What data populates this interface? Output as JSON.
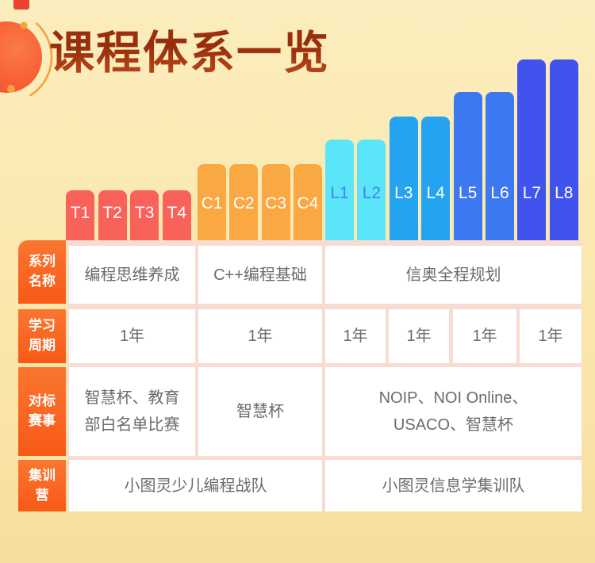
{
  "page": {
    "bg_top": "#FBEDBE",
    "bg_bottom": "#F8DE9D"
  },
  "header": {
    "title": "课程体系一览",
    "title_color_top": "#A1300F",
    "title_color_bottom": "#C04A1B",
    "tab_color": "#E8432D",
    "ornament_ball_color_inner": "#FB7A47",
    "ornament_ball_color_outer": "#F7502C",
    "ornament_ring_color": "#F5A33F"
  },
  "chart": {
    "type": "stepped-level-bars",
    "groups": [
      {
        "id": "T",
        "name": "编程思维养成",
        "levels": [
          "T1",
          "T2",
          "T3",
          "T4"
        ],
        "color": "#F9625A",
        "label_color": "#FFFFFF"
      },
      {
        "id": "C",
        "name": "C++编程基础",
        "levels": [
          "C1",
          "C2",
          "C3",
          "C4"
        ],
        "color": "#F9A844",
        "label_color": "#FFFFFF"
      },
      {
        "id": "L",
        "name": "信奥全程规划",
        "levels": [
          "L1",
          "L2",
          "L3",
          "L4",
          "L5",
          "L6",
          "L7",
          "L8"
        ],
        "pair_colors": [
          "#5BE5F9",
          "#24A3F1",
          "#3C78F0",
          "#4053EC"
        ],
        "pair_label_colors": [
          "#3F86E8",
          "#FFFFFF",
          "#FFFFFF",
          "#FFFFFF"
        ]
      }
    ]
  },
  "table": {
    "panel_color": "#F8DCD2",
    "header_gradient_top": "#FA7630",
    "header_gradient_bottom": "#F85917",
    "cell_text_color": "#6E6A68",
    "rows": [
      {
        "header": "系列\n名称",
        "cells": [
          {
            "span": "T",
            "text": "编程思维养成"
          },
          {
            "span": "C",
            "text": "C++编程基础"
          },
          {
            "span": "L",
            "text": "信奥全程规划"
          }
        ]
      },
      {
        "header": "学习\n周期",
        "cells": [
          {
            "span": "T",
            "text": "1年"
          },
          {
            "span": "C",
            "text": "1年"
          },
          {
            "span": "L12",
            "text": "1年"
          },
          {
            "span": "L34",
            "text": "1年"
          },
          {
            "span": "L56",
            "text": "1年"
          },
          {
            "span": "L78",
            "text": "1年"
          }
        ]
      },
      {
        "header": "对标\n赛事",
        "cells": [
          {
            "span": "T",
            "text": "智慧杯、教育\n部白名单比赛"
          },
          {
            "span": "C",
            "text": "智慧杯"
          },
          {
            "span": "L",
            "text": "NOIP、NOI Online、\nUSACO、智慧杯"
          }
        ]
      },
      {
        "header": "集训\n营",
        "cells": [
          {
            "span": "TC",
            "text": "小图灵少儿编程战队"
          },
          {
            "span": "L",
            "text": "小图灵信息学集训队"
          }
        ]
      }
    ]
  }
}
